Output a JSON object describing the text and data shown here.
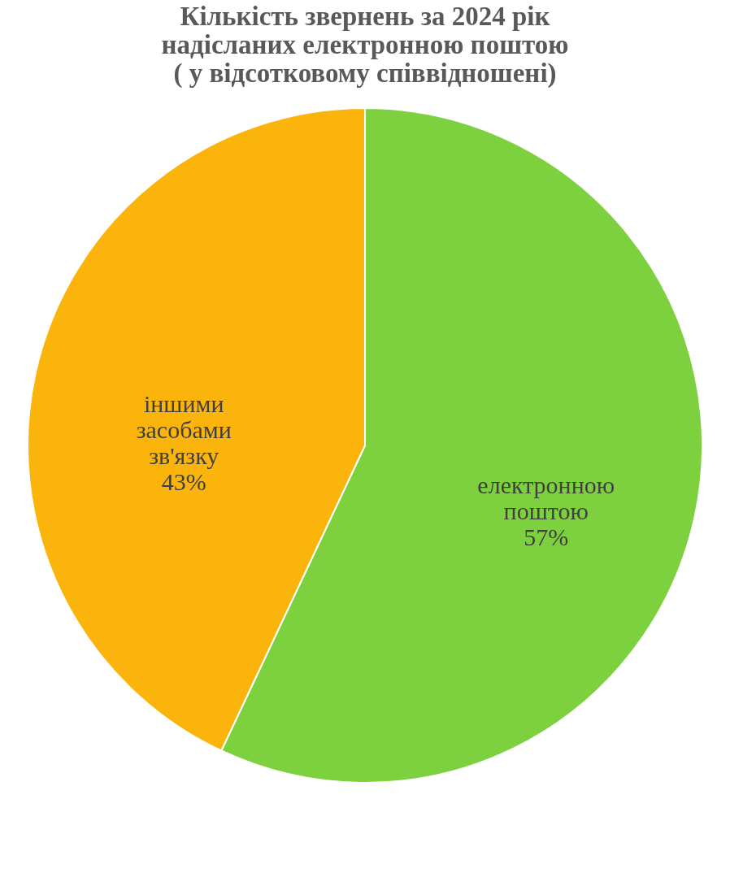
{
  "chart_data": {
    "type": "pie",
    "title": "Кількість звернень за 2024 рік\nнадісланих електронною поштою\n( у відсотковому співвідношені)",
    "categories": [
      "електронною поштою",
      "іншими засобами зв'язку"
    ],
    "values": [
      57,
      43
    ],
    "colors": [
      "#7ed13e",
      "#fbb40b"
    ],
    "value_labels": [
      "57%",
      "43%"
    ],
    "legend": false
  }
}
